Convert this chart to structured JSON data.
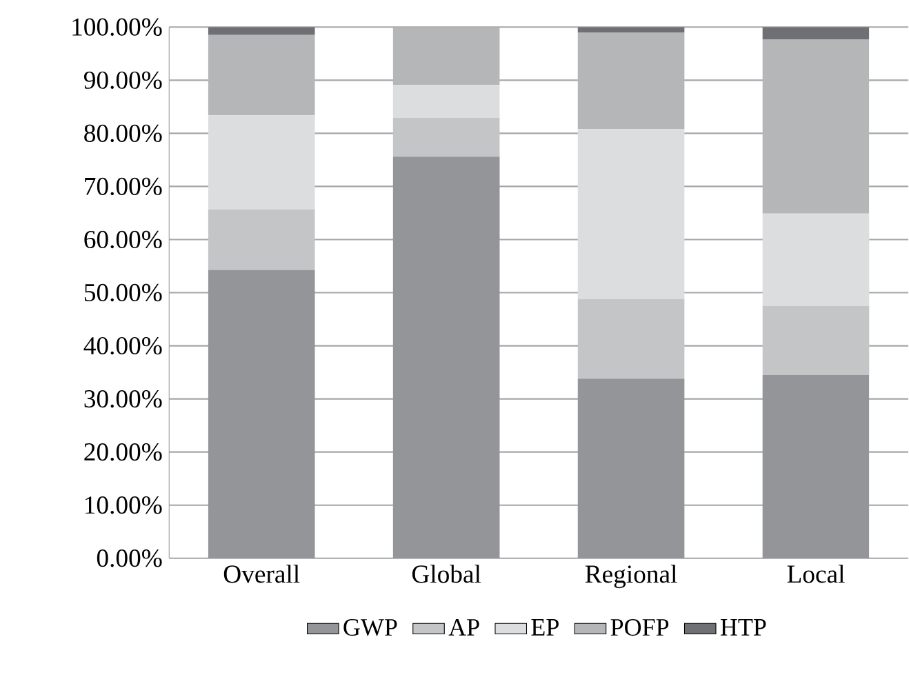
{
  "chart_data": {
    "type": "bar",
    "stacked": true,
    "categories": [
      "Overall",
      "Global",
      "Regional",
      "Local"
    ],
    "series": [
      {
        "name": "GWP",
        "color": "#939598",
        "values": [
          54.3,
          75.6,
          33.8,
          34.5
        ]
      },
      {
        "name": "AP",
        "color": "#c4c5c7",
        "values": [
          11.4,
          7.3,
          15.0,
          13.0
        ]
      },
      {
        "name": "EP",
        "color": "#dcdddf",
        "values": [
          17.7,
          6.2,
          32.0,
          17.4
        ]
      },
      {
        "name": "POFP",
        "color": "#b5b6b8",
        "values": [
          15.1,
          10.9,
          18.2,
          32.8
        ]
      },
      {
        "name": "HTP",
        "color": "#6f7073",
        "values": [
          1.5,
          0,
          1.0,
          2.3
        ]
      }
    ],
    "ylim": [
      0,
      100
    ],
    "yticks": [
      {
        "value": 0,
        "label": "0.00%"
      },
      {
        "value": 10,
        "label": "10.00%"
      },
      {
        "value": 20,
        "label": "20.00%"
      },
      {
        "value": 30,
        "label": "30.00%"
      },
      {
        "value": 40,
        "label": "40.00%"
      },
      {
        "value": 50,
        "label": "50.00%"
      },
      {
        "value": 60,
        "label": "60.00%"
      },
      {
        "value": 70,
        "label": "70.00%"
      },
      {
        "value": 80,
        "label": "80.00%"
      },
      {
        "value": 90,
        "label": "90.00%"
      },
      {
        "value": 100,
        "label": "100.00%"
      }
    ],
    "grid": "y",
    "legend": "bottom"
  }
}
